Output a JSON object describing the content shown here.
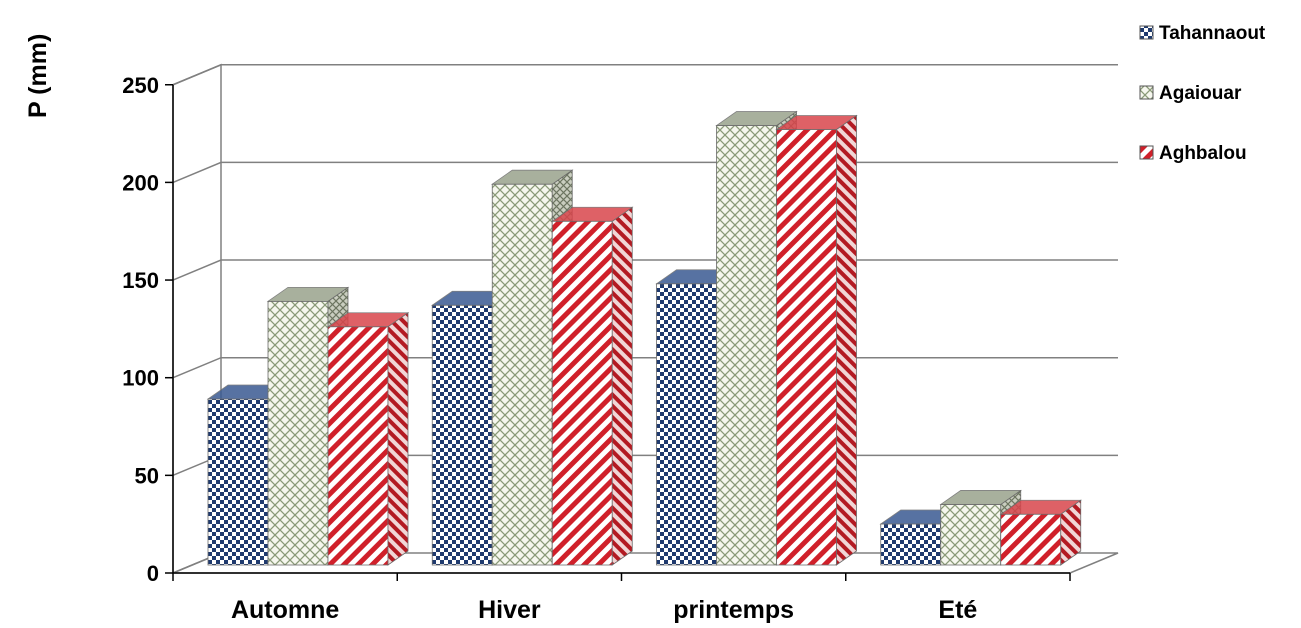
{
  "chart_data": {
    "type": "bar",
    "three_d": true,
    "title": "",
    "xlabel": "",
    "ylabel": "P (mm)",
    "ylim": [
      0,
      250
    ],
    "yticks": [
      0,
      50,
      100,
      150,
      200,
      250
    ],
    "grid": true,
    "legend_position": "top-right",
    "categories": [
      "Automne",
      "Hiver",
      "printemps",
      "Eté"
    ],
    "series": [
      {
        "name": "Tahannaout",
        "values": [
          85,
          133,
          144,
          21
        ],
        "color": "#1f3a6e",
        "pattern": "checker"
      },
      {
        "name": "Agaiouar",
        "values": [
          135,
          195,
          225,
          31
        ],
        "color": "#8a9a78",
        "pattern": "crosshatch"
      },
      {
        "name": "Aghbalou",
        "values": [
          122,
          176,
          223,
          26
        ],
        "color": "#d0202a",
        "pattern": "diagonal"
      }
    ]
  }
}
